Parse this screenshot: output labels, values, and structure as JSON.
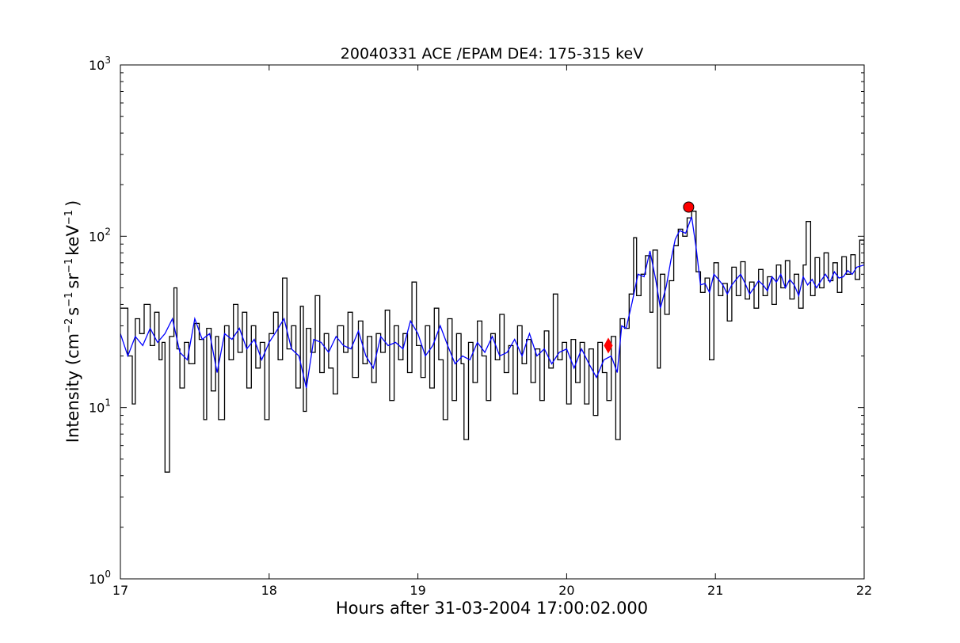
{
  "chart_data": {
    "type": "line",
    "title": "20040331 ACE /EPAM DE4: 175-315 keV",
    "xlabel": "Hours after 31-03-2004 17:00:02.000",
    "ylabel_parts": {
      "intensity": "Intensity (cm",
      "sup_cm": "−2",
      "s": "s",
      "sup_s": "−1",
      "sr": "sr",
      "sup_sr": "−1",
      "kev": "keV",
      "sup_kev": "−1",
      "close": ")"
    },
    "xlim": [
      17,
      22
    ],
    "ylim": [
      1,
      1000
    ],
    "yscale": "log",
    "grid": false,
    "x_ticks": [
      "17",
      "18",
      "19",
      "20",
      "21",
      "22"
    ],
    "y_ticks": [
      {
        "base": "10",
        "exp": "0"
      },
      {
        "base": "10",
        "exp": "1"
      },
      {
        "base": "10",
        "exp": "2"
      },
      {
        "base": "10",
        "exp": "3"
      }
    ],
    "series": [
      {
        "color": "#000000",
        "style": "steps",
        "points": [
          [
            17.0,
            38
          ],
          [
            17.05,
            20
          ],
          [
            17.08,
            10.5
          ],
          [
            17.1,
            33
          ],
          [
            17.13,
            27
          ],
          [
            17.16,
            40
          ],
          [
            17.2,
            23
          ],
          [
            17.23,
            36
          ],
          [
            17.26,
            19
          ],
          [
            17.28,
            24
          ],
          [
            17.3,
            4.2
          ],
          [
            17.33,
            26
          ],
          [
            17.36,
            50
          ],
          [
            17.38,
            22
          ],
          [
            17.4,
            13
          ],
          [
            17.43,
            24
          ],
          [
            17.46,
            18
          ],
          [
            17.5,
            31
          ],
          [
            17.53,
            25
          ],
          [
            17.56,
            8.5
          ],
          [
            17.58,
            29
          ],
          [
            17.61,
            12.5
          ],
          [
            17.64,
            26
          ],
          [
            17.66,
            8.5
          ],
          [
            17.7,
            30
          ],
          [
            17.73,
            19
          ],
          [
            17.76,
            40
          ],
          [
            17.79,
            21
          ],
          [
            17.82,
            36
          ],
          [
            17.85,
            13
          ],
          [
            17.88,
            30
          ],
          [
            17.91,
            17
          ],
          [
            17.94,
            24
          ],
          [
            17.97,
            8.5
          ],
          [
            18.0,
            27
          ],
          [
            18.03,
            36
          ],
          [
            18.06,
            19
          ],
          [
            18.09,
            57
          ],
          [
            18.12,
            22
          ],
          [
            18.15,
            30
          ],
          [
            18.18,
            13
          ],
          [
            18.21,
            39
          ],
          [
            18.23,
            9.5
          ],
          [
            18.25,
            29
          ],
          [
            18.28,
            21
          ],
          [
            18.31,
            45
          ],
          [
            18.34,
            16
          ],
          [
            18.37,
            27
          ],
          [
            18.4,
            17
          ],
          [
            18.43,
            12
          ],
          [
            18.46,
            30
          ],
          [
            18.5,
            21
          ],
          [
            18.53,
            36
          ],
          [
            18.56,
            15
          ],
          [
            18.6,
            32
          ],
          [
            18.63,
            18
          ],
          [
            18.66,
            26
          ],
          [
            18.69,
            14
          ],
          [
            18.72,
            27
          ],
          [
            18.75,
            21
          ],
          [
            18.78,
            37
          ],
          [
            18.81,
            11
          ],
          [
            18.84,
            30
          ],
          [
            18.87,
            19
          ],
          [
            18.9,
            27
          ],
          [
            18.93,
            16
          ],
          [
            18.96,
            54
          ],
          [
            18.99,
            23
          ],
          [
            19.02,
            15
          ],
          [
            19.05,
            30
          ],
          [
            19.08,
            13
          ],
          [
            19.11,
            38
          ],
          [
            19.14,
            19
          ],
          [
            19.17,
            8.5
          ],
          [
            19.2,
            33
          ],
          [
            19.23,
            11
          ],
          [
            19.26,
            27
          ],
          [
            19.29,
            18
          ],
          [
            19.31,
            6.5
          ],
          [
            19.34,
            24
          ],
          [
            19.37,
            14
          ],
          [
            19.4,
            32
          ],
          [
            19.43,
            20
          ],
          [
            19.46,
            11
          ],
          [
            19.49,
            27
          ],
          [
            19.52,
            19
          ],
          [
            19.55,
            35
          ],
          [
            19.58,
            16
          ],
          [
            19.61,
            23
          ],
          [
            19.64,
            12
          ],
          [
            19.67,
            30
          ],
          [
            19.7,
            18
          ],
          [
            19.73,
            25
          ],
          [
            19.76,
            14
          ],
          [
            19.79,
            22
          ],
          [
            19.82,
            11
          ],
          [
            19.85,
            28
          ],
          [
            19.88,
            17
          ],
          [
            19.91,
            46
          ],
          [
            19.94,
            19
          ],
          [
            19.97,
            24
          ],
          [
            20.0,
            10.5
          ],
          [
            20.03,
            25
          ],
          [
            20.06,
            14
          ],
          [
            20.09,
            24
          ],
          [
            20.12,
            10.5
          ],
          [
            20.15,
            22
          ],
          [
            20.18,
            9
          ],
          [
            20.21,
            24
          ],
          [
            20.24,
            16
          ],
          [
            20.27,
            11
          ],
          [
            20.3,
            26
          ],
          [
            20.33,
            6.5
          ],
          [
            20.36,
            33
          ],
          [
            20.39,
            29
          ],
          [
            20.42,
            46
          ],
          [
            20.45,
            98
          ],
          [
            20.47,
            45
          ],
          [
            20.5,
            60
          ],
          [
            20.53,
            77
          ],
          [
            20.56,
            36
          ],
          [
            20.58,
            83
          ],
          [
            20.61,
            17
          ],
          [
            20.63,
            60
          ],
          [
            20.66,
            35
          ],
          [
            20.69,
            55
          ],
          [
            20.72,
            88
          ],
          [
            20.75,
            110
          ],
          [
            20.78,
            100
          ],
          [
            20.81,
            128
          ],
          [
            20.84,
            140
          ],
          [
            20.87,
            62
          ],
          [
            20.9,
            47
          ],
          [
            20.93,
            57
          ],
          [
            20.96,
            19
          ],
          [
            20.99,
            70
          ],
          [
            21.02,
            45
          ],
          [
            21.05,
            53
          ],
          [
            21.08,
            32
          ],
          [
            21.11,
            66
          ],
          [
            21.14,
            45
          ],
          [
            21.17,
            71
          ],
          [
            21.2,
            43
          ],
          [
            21.23,
            54
          ],
          [
            21.26,
            38
          ],
          [
            21.29,
            64
          ],
          [
            21.32,
            45
          ],
          [
            21.35,
            58
          ],
          [
            21.38,
            40
          ],
          [
            21.41,
            68
          ],
          [
            21.44,
            50
          ],
          [
            21.47,
            72
          ],
          [
            21.5,
            43
          ],
          [
            21.53,
            60
          ],
          [
            21.56,
            38
          ],
          [
            21.59,
            68
          ],
          [
            21.61,
            122
          ],
          [
            21.64,
            45
          ],
          [
            21.67,
            75
          ],
          [
            21.7,
            50
          ],
          [
            21.73,
            80
          ],
          [
            21.76,
            55
          ],
          [
            21.79,
            70
          ],
          [
            21.82,
            47
          ],
          [
            21.85,
            76
          ],
          [
            21.88,
            60
          ],
          [
            21.91,
            78
          ],
          [
            21.94,
            56
          ],
          [
            21.97,
            95
          ],
          [
            22.0,
            68
          ]
        ]
      },
      {
        "color": "#0000ff",
        "style": "line",
        "points": [
          [
            17.0,
            27
          ],
          [
            17.05,
            20
          ],
          [
            17.1,
            26
          ],
          [
            17.15,
            23
          ],
          [
            17.2,
            29
          ],
          [
            17.25,
            24
          ],
          [
            17.3,
            27
          ],
          [
            17.35,
            33
          ],
          [
            17.4,
            21
          ],
          [
            17.45,
            19
          ],
          [
            17.5,
            33
          ],
          [
            17.55,
            25
          ],
          [
            17.6,
            27
          ],
          [
            17.65,
            16
          ],
          [
            17.7,
            27
          ],
          [
            17.75,
            25
          ],
          [
            17.8,
            29
          ],
          [
            17.85,
            22
          ],
          [
            17.9,
            25
          ],
          [
            17.95,
            19
          ],
          [
            18.0,
            24
          ],
          [
            18.05,
            28
          ],
          [
            18.1,
            33
          ],
          [
            18.15,
            22
          ],
          [
            18.2,
            20
          ],
          [
            18.25,
            13
          ],
          [
            18.3,
            25
          ],
          [
            18.35,
            24
          ],
          [
            18.4,
            21
          ],
          [
            18.45,
            26
          ],
          [
            18.5,
            23
          ],
          [
            18.55,
            22
          ],
          [
            18.6,
            28
          ],
          [
            18.65,
            20
          ],
          [
            18.7,
            17
          ],
          [
            18.75,
            26
          ],
          [
            18.8,
            23
          ],
          [
            18.85,
            24
          ],
          [
            18.9,
            22
          ],
          [
            18.95,
            32
          ],
          [
            19.0,
            27
          ],
          [
            19.05,
            20
          ],
          [
            19.1,
            23
          ],
          [
            19.15,
            30
          ],
          [
            19.2,
            23
          ],
          [
            19.25,
            18
          ],
          [
            19.3,
            20
          ],
          [
            19.35,
            19
          ],
          [
            19.4,
            24
          ],
          [
            19.45,
            21
          ],
          [
            19.5,
            26
          ],
          [
            19.55,
            20
          ],
          [
            19.6,
            21
          ],
          [
            19.65,
            25
          ],
          [
            19.7,
            20
          ],
          [
            19.75,
            27
          ],
          [
            19.8,
            20
          ],
          [
            19.85,
            22
          ],
          [
            19.9,
            18
          ],
          [
            19.95,
            21
          ],
          [
            20.0,
            22
          ],
          [
            20.05,
            17
          ],
          [
            20.1,
            22
          ],
          [
            20.15,
            18
          ],
          [
            20.2,
            15
          ],
          [
            20.25,
            19
          ],
          [
            20.3,
            20
          ],
          [
            20.34,
            16
          ],
          [
            20.37,
            30
          ],
          [
            20.4,
            29
          ],
          [
            20.44,
            41
          ],
          [
            20.48,
            60
          ],
          [
            20.52,
            58
          ],
          [
            20.56,
            82
          ],
          [
            20.6,
            55
          ],
          [
            20.63,
            38
          ],
          [
            20.67,
            51
          ],
          [
            20.7,
            72
          ],
          [
            20.73,
            96
          ],
          [
            20.76,
            108
          ],
          [
            20.8,
            104
          ],
          [
            20.84,
            130
          ],
          [
            20.87,
            86
          ],
          [
            20.9,
            52
          ],
          [
            20.93,
            53
          ],
          [
            20.96,
            47
          ],
          [
            20.99,
            60
          ],
          [
            21.02,
            56
          ],
          [
            21.05,
            52
          ],
          [
            21.08,
            46
          ],
          [
            21.11,
            52
          ],
          [
            21.14,
            56
          ],
          [
            21.17,
            60
          ],
          [
            21.2,
            53
          ],
          [
            21.23,
            46
          ],
          [
            21.26,
            50
          ],
          [
            21.29,
            55
          ],
          [
            21.32,
            52
          ],
          [
            21.35,
            48
          ],
          [
            21.38,
            58
          ],
          [
            21.41,
            54
          ],
          [
            21.44,
            60
          ],
          [
            21.47,
            50
          ],
          [
            21.5,
            56
          ],
          [
            21.53,
            52
          ],
          [
            21.56,
            45
          ],
          [
            21.59,
            58
          ],
          [
            21.62,
            52
          ],
          [
            21.65,
            56
          ],
          [
            21.68,
            50
          ],
          [
            21.71,
            55
          ],
          [
            21.74,
            60
          ],
          [
            21.77,
            54
          ],
          [
            21.8,
            62
          ],
          [
            21.83,
            57
          ],
          [
            21.86,
            58
          ],
          [
            21.89,
            63
          ],
          [
            21.92,
            60
          ],
          [
            21.95,
            66
          ],
          [
            22.0,
            68
          ]
        ]
      }
    ],
    "markers": [
      {
        "shape": "diamond",
        "x": 20.28,
        "y": 23,
        "color": "#ff0000"
      },
      {
        "shape": "circle",
        "x": 20.82,
        "y": 148,
        "color": "#ff0000"
      }
    ]
  }
}
